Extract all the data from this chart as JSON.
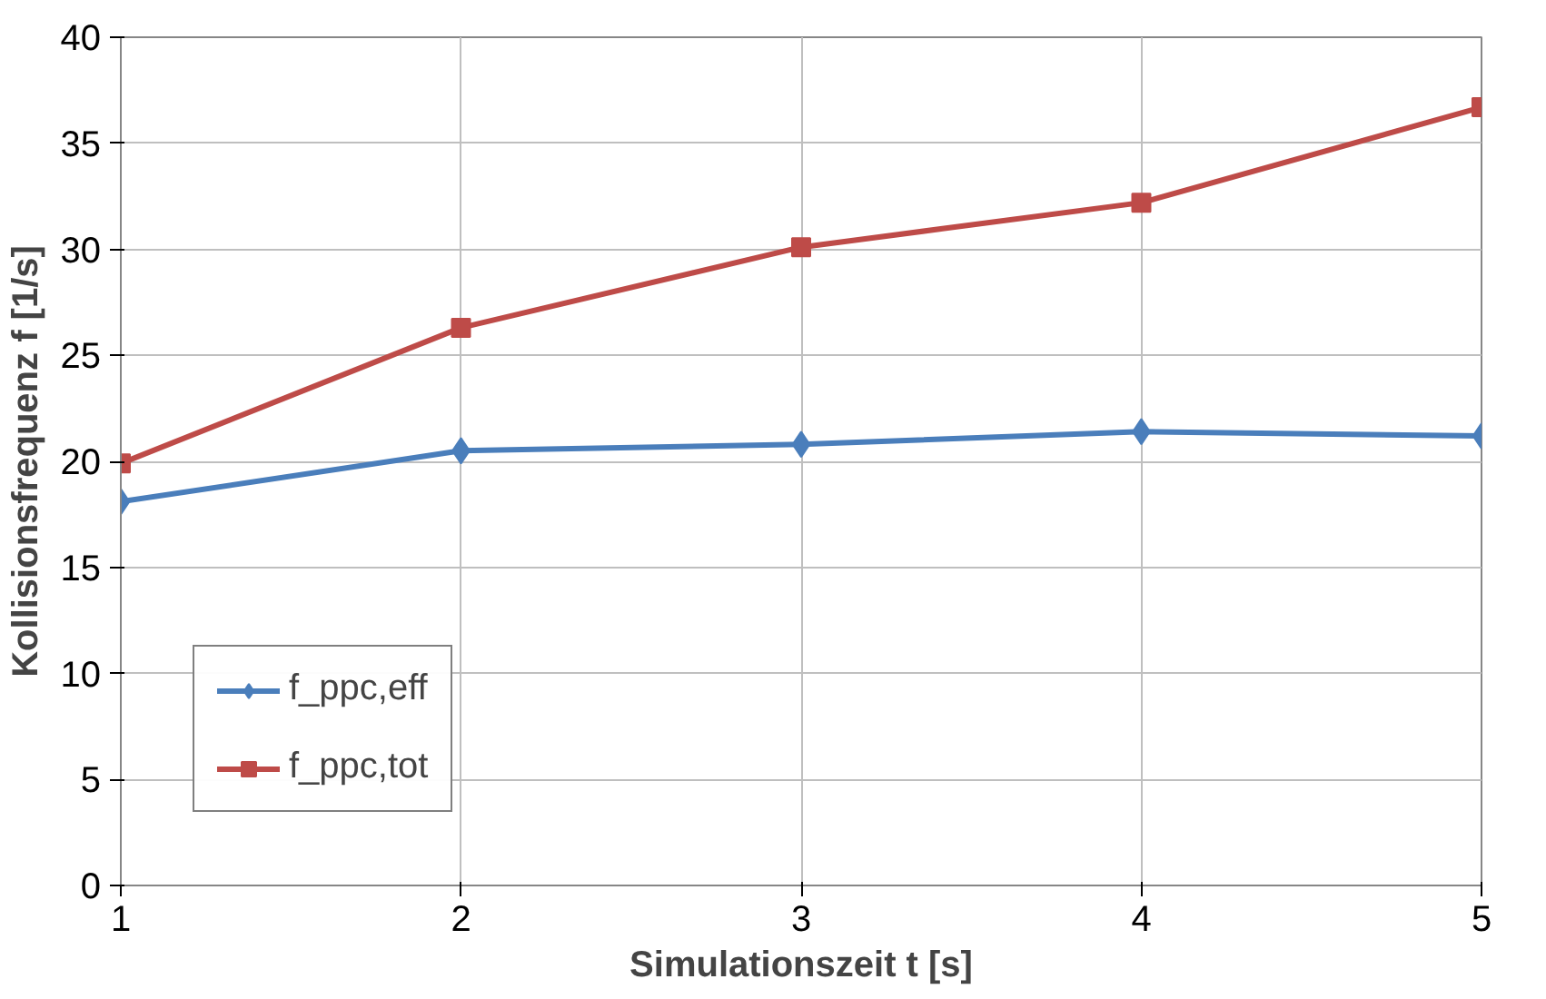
{
  "chart_data": {
    "type": "line",
    "xlabel": "Simulationszeit t [s]",
    "ylabel": "Kollisionsfrequenz f [1/s]",
    "x": [
      1,
      2,
      3,
      4,
      5
    ],
    "series": [
      {
        "name": "f_ppc,eff",
        "color": "#4a7ebb",
        "marker": "diamond",
        "values": [
          18.1,
          20.5,
          20.8,
          21.4,
          21.2
        ]
      },
      {
        "name": "f_ppc,tot",
        "color": "#be4b48",
        "marker": "square",
        "values": [
          19.9,
          26.3,
          30.1,
          32.2,
          36.7
        ]
      }
    ],
    "xlim": [
      1,
      5
    ],
    "xticks": [
      1,
      2,
      3,
      4,
      5
    ],
    "ylim": [
      0,
      40
    ],
    "yticks": [
      0,
      5,
      10,
      15,
      20,
      25,
      30,
      35,
      40
    ],
    "grid": true,
    "legend": "bottom left",
    "line_style": "solid"
  }
}
